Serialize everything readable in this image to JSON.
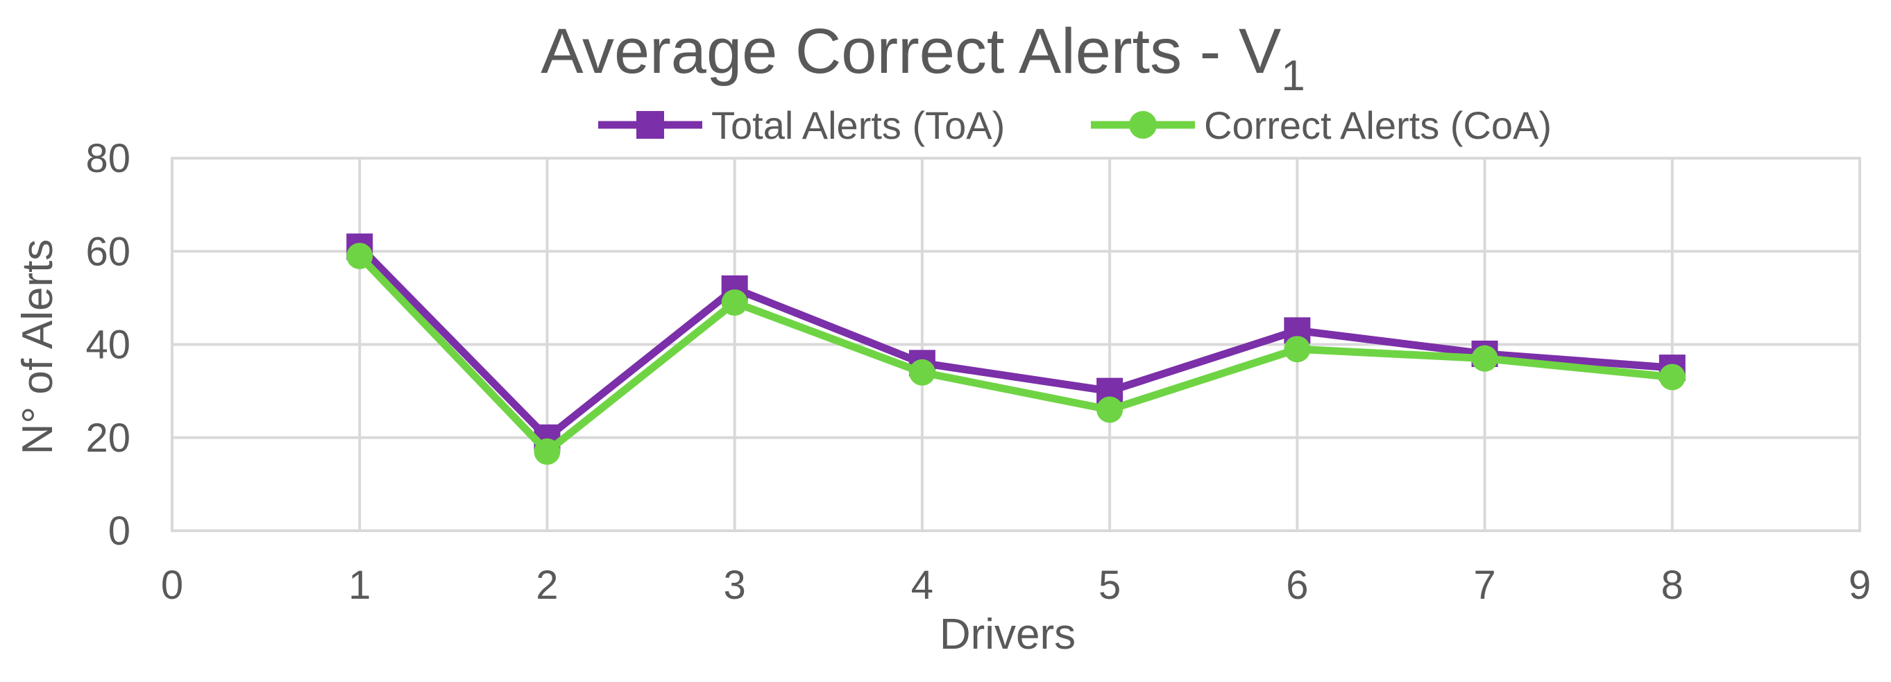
{
  "chart_data": {
    "type": "line",
    "title": "Average Correct Alerts - V",
    "title_subscript": "1",
    "xlabel": "Drivers",
    "ylabel": "N° of Alerts",
    "xlim": [
      0,
      9
    ],
    "ylim": [
      0,
      80
    ],
    "xticks": [
      "0",
      "1",
      "2",
      "3",
      "4",
      "5",
      "6",
      "7",
      "8",
      "9"
    ],
    "yticks": [
      "0",
      "20",
      "40",
      "60",
      "80"
    ],
    "grid": true,
    "legend_position": "top",
    "x": [
      1,
      2,
      3,
      4,
      5,
      6,
      7,
      8
    ],
    "series": [
      {
        "name": "Total Alerts (ToA)",
        "values": [
          61,
          20,
          52,
          36,
          30,
          43,
          38,
          35
        ],
        "color": "#7b2fa8",
        "marker": "square"
      },
      {
        "name": "Correct Alerts (CoA)",
        "values": [
          59,
          17,
          49,
          34,
          26,
          39,
          37,
          33
        ],
        "color": "#6fd444",
        "marker": "circle"
      }
    ]
  }
}
